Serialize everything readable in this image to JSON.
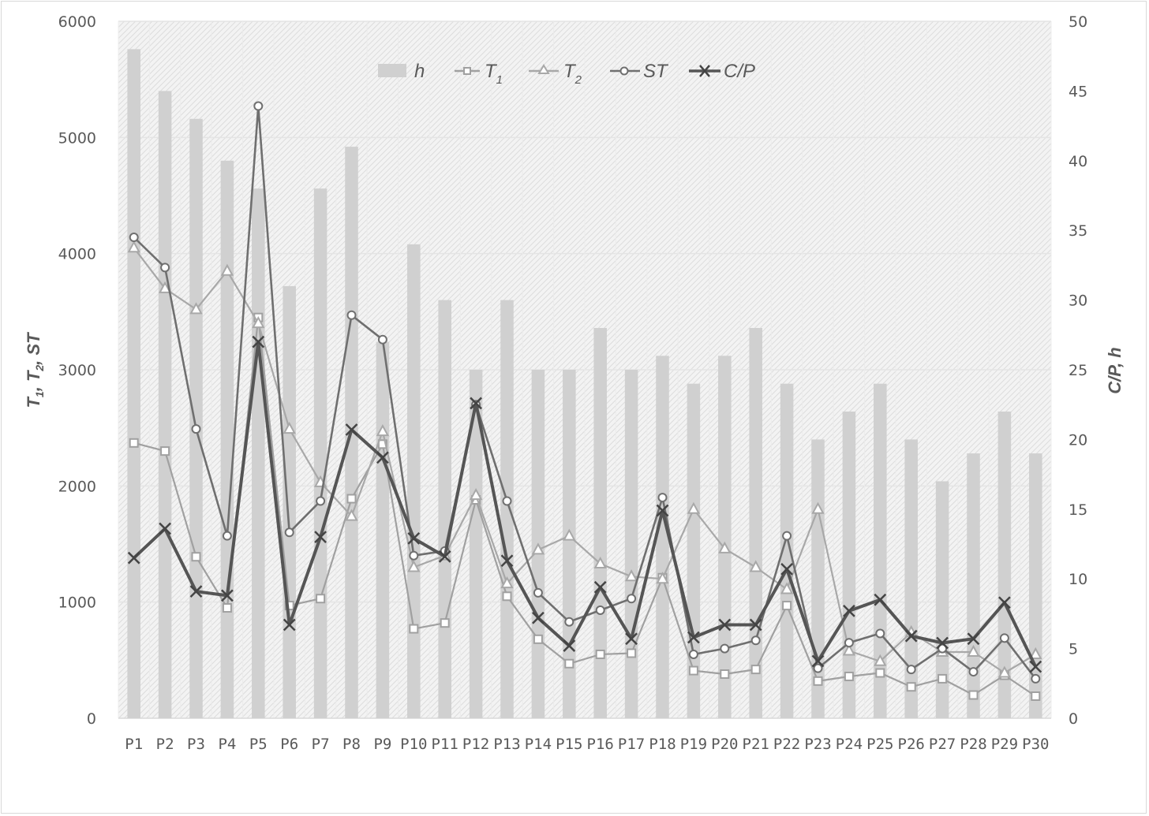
{
  "chart_data": {
    "type": "bar+line",
    "title": "",
    "categories": [
      "P1",
      "P2",
      "P3",
      "P4",
      "P5",
      "P6",
      "P7",
      "P8",
      "P9",
      "P10",
      "P11",
      "P12",
      "P13",
      "P14",
      "P15",
      "P16",
      "P17",
      "P18",
      "P19",
      "P20",
      "P21",
      "P22",
      "P23",
      "P24",
      "P25",
      "P26",
      "P27",
      "P28",
      "P29",
      "P30"
    ],
    "left_axis": {
      "label": "T1, T2, ST",
      "range": [
        0,
        6000
      ],
      "ticks": [
        0,
        1000,
        2000,
        3000,
        4000,
        5000,
        6000
      ]
    },
    "right_axis": {
      "label": "C/P, h",
      "range": [
        0,
        50
      ],
      "ticks": [
        0,
        5,
        10,
        15,
        20,
        25,
        30,
        35,
        40,
        45,
        50
      ]
    },
    "series": [
      {
        "name": "h",
        "type": "bar",
        "axis": "right",
        "color": "#d0d0d0",
        "values": [
          48,
          45,
          43,
          40,
          38,
          31,
          38,
          41,
          27,
          34,
          30,
          25,
          30,
          25,
          25,
          28,
          25,
          26,
          24,
          26,
          28,
          24,
          20,
          22,
          24,
          20,
          17,
          19,
          22,
          19
        ]
      },
      {
        "name": "T1",
        "type": "line",
        "axis": "left",
        "marker": "square",
        "color": "#a0a0a0",
        "values": [
          2370,
          2300,
          1390,
          950,
          3450,
          970,
          1030,
          1890,
          2360,
          770,
          820,
          1880,
          1050,
          680,
          470,
          550,
          560,
          1210,
          410,
          380,
          420,
          970,
          320,
          360,
          390,
          270,
          340,
          200,
          370,
          190
        ]
      },
      {
        "name": "T2",
        "type": "line",
        "axis": "left",
        "marker": "triangle",
        "color": "#a8a8a8",
        "values": [
          4050,
          3700,
          3520,
          3850,
          3400,
          2490,
          2030,
          1740,
          2470,
          1300,
          1400,
          1920,
          1160,
          1450,
          1570,
          1330,
          1220,
          1200,
          1800,
          1460,
          1300,
          1110,
          1800,
          580,
          490,
          740,
          570,
          570,
          390,
          550
        ]
      },
      {
        "name": "ST",
        "type": "line",
        "axis": "left",
        "marker": "circle",
        "color": "#6f6f6f",
        "values": [
          4140,
          3880,
          2490,
          1570,
          5270,
          1600,
          1870,
          3470,
          3260,
          1400,
          1440,
          2700,
          1870,
          1080,
          830,
          930,
          1030,
          1900,
          550,
          600,
          670,
          1570,
          430,
          650,
          730,
          420,
          600,
          400,
          690,
          340
        ]
      },
      {
        "name": "C/P",
        "type": "line",
        "axis": "right",
        "marker": "x",
        "color": "#555555",
        "values": [
          11.5,
          13.6,
          9.1,
          8.8,
          27.0,
          6.7,
          13.0,
          20.7,
          18.7,
          12.9,
          11.6,
          22.6,
          11.3,
          7.2,
          5.2,
          9.4,
          5.7,
          14.9,
          5.8,
          6.7,
          6.7,
          10.7,
          4.1,
          7.7,
          8.5,
          5.9,
          5.4,
          5.7,
          8.3,
          3.7
        ]
      }
    ],
    "legend": {
      "position": "top-inside",
      "entries": [
        "h",
        "T1",
        "T2",
        "ST",
        "C/P"
      ]
    },
    "grid": true
  },
  "labels": {
    "left_axis_title": {
      "main1": "T",
      "sub1": "1",
      "sep1": ", ",
      "main2": "T",
      "sub2": "2",
      "rest": ", ST"
    },
    "right_axis_title": "C/P, h",
    "legend": [
      {
        "main": "h",
        "sub": ""
      },
      {
        "main": "T",
        "sub": "1"
      },
      {
        "main": "T",
        "sub": "2"
      },
      {
        "main": "ST",
        "sub": ""
      },
      {
        "main": "C/P",
        "sub": ""
      }
    ]
  }
}
